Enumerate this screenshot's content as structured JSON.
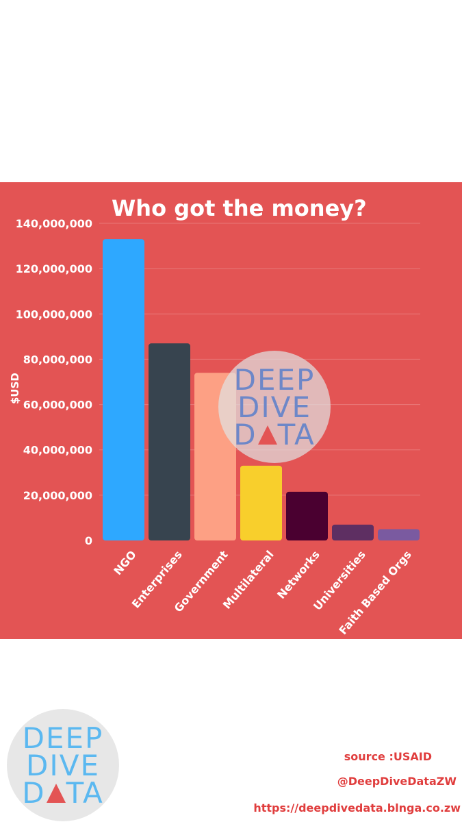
{
  "chart_data": {
    "type": "bar",
    "title": "Who got the money?",
    "ylabel": "$USD",
    "xlabel": "",
    "ylim": [
      0,
      140000000
    ],
    "yticks": [
      0,
      20000000,
      40000000,
      60000000,
      80000000,
      100000000,
      120000000,
      140000000
    ],
    "ytick_labels": [
      "0",
      "20,000,000",
      "40,000,000",
      "60,000,000",
      "80,000,000",
      "100,000,000",
      "120,000,000",
      "140,000,000"
    ],
    "grid": true,
    "categories": [
      "NGO",
      "Enterprises",
      "Government",
      "Multilateral",
      "Networks",
      "Universities",
      "Faith Based Orgs"
    ],
    "values": [
      133000000,
      87000000,
      74000000,
      33000000,
      21500000,
      7000000,
      5000000
    ],
    "colors": [
      "#2ea8ff",
      "#37444f",
      "#fda084",
      "#f8cf2c",
      "#4a0030",
      "#5e2f62",
      "#7a5aa0"
    ]
  },
  "watermark": {
    "line1": "DEEP",
    "line2": "DIVE",
    "line3_a": "D",
    "line3_b": "TA",
    "triangle_icon": "triangle-icon"
  },
  "footer": {
    "logo_line1": "DEEP",
    "logo_line2": "DIVE",
    "logo_line3_a": "D",
    "logo_line3_b": "TA",
    "source": "source :USAID",
    "handle": "@DeepDiveDataZW",
    "url": "https://deepdivedata.blnga.co.zw"
  },
  "colors": {
    "panel": "#e35454",
    "text": "#ffffff",
    "footer_text": "#e03d3d"
  }
}
